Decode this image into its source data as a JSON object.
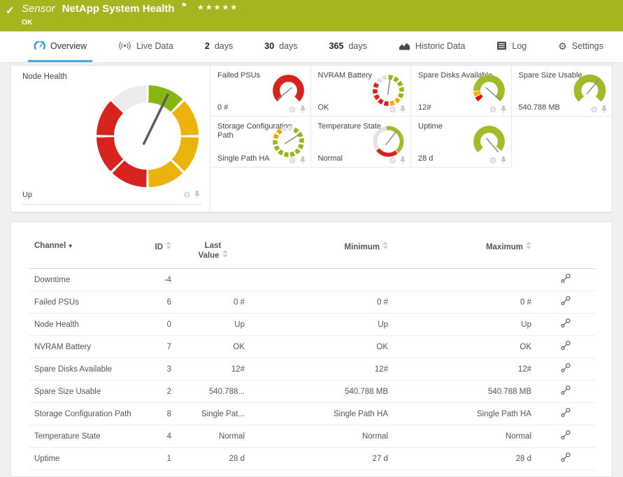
{
  "header": {
    "status_icon": "check-icon",
    "kind": "Sensor",
    "title": "NetApp System Health",
    "flag_icon": "flag-icon",
    "stars": "★★★★★",
    "status": "OK",
    "bg_color": "#a6b420"
  },
  "tabs": [
    {
      "icon": "gauge-icon",
      "label": "Overview",
      "active": true
    },
    {
      "icon": "live-data-icon",
      "label": "Live Data"
    },
    {
      "strong": "2",
      "label": "days"
    },
    {
      "strong": "30",
      "label": "days"
    },
    {
      "strong": "365",
      "label": "days"
    },
    {
      "icon": "historic-data-icon",
      "label": "Historic Data"
    },
    {
      "icon": "log-icon",
      "label": "Log"
    },
    {
      "icon": "settings-icon",
      "label": "Settings"
    }
  ],
  "colors": {
    "header_green": "#a6b420",
    "tab_blue": "#47a7dc",
    "gauge_green": "#87b512",
    "gauge_lime": "#a0ba2a",
    "gauge_yellow": "#ecb30d",
    "gauge_red": "#d7231d",
    "gauge_gray": "#e7e7e7"
  },
  "gauges": {
    "node_health": {
      "title": "Node Health",
      "value": "Up",
      "type": "donut",
      "vb": 150,
      "r": 60.5,
      "w": 25,
      "needle": 26,
      "len": 66,
      "back": 12,
      "nw": 3.4,
      "ncolor": "#5c5c5c",
      "segments": [
        {
          "from": 1.5,
          "to": 43.5,
          "color": "#87b512"
        },
        {
          "from": 46.5,
          "to": 88.5,
          "color": "#ecb30d"
        },
        {
          "from": 91.5,
          "to": 133.5,
          "color": "#ecb30d"
        },
        {
          "from": 136.5,
          "to": 178.5,
          "color": "#ecb30d"
        },
        {
          "from": 181.5,
          "to": 223.5,
          "color": "#d7231d"
        },
        {
          "from": 226.5,
          "to": 268.5,
          "color": "#d7231d"
        },
        {
          "from": 271.5,
          "to": 313.5,
          "color": "#d7231d"
        },
        {
          "from": 316.5,
          "to": 358.5,
          "color": "#ececec"
        }
      ]
    },
    "small": [
      {
        "title": "Failed PSUs",
        "value": "0 #",
        "vb": 64,
        "r": 21,
        "w": 12,
        "needle": -129,
        "len": 24,
        "back": 7,
        "nw": 1.8,
        "ncolor": "#8a8a8a",
        "segments": [
          {
            "from": -135,
            "to": 135,
            "color": "#d7231d"
          }
        ]
      },
      {
        "title": "NVRAM Battery",
        "value": "OK",
        "vb": 64,
        "r": 23,
        "w": 8,
        "needle": 8,
        "len": 20,
        "back": 7,
        "nw": 1.8,
        "ncolor": "#8a8a8a",
        "segments": [
          {
            "from": 0,
            "to": 18,
            "color": "#96b818"
          },
          {
            "from": 25.7,
            "to": 43.7,
            "color": "#96b818"
          },
          {
            "from": 51.4,
            "to": 69.4,
            "color": "#96b818"
          },
          {
            "from": 77.1,
            "to": 95.1,
            "color": "#96b818"
          },
          {
            "from": 102.9,
            "to": 120.9,
            "color": "#96b818"
          },
          {
            "from": 128.6,
            "to": 146.6,
            "color": "#ecb30d"
          },
          {
            "from": 154.3,
            "to": 172.3,
            "color": "#ecb30d"
          },
          {
            "from": 180,
            "to": 198,
            "color": "#d7231d"
          },
          {
            "from": 205.7,
            "to": 223.7,
            "color": "#d7231d"
          },
          {
            "from": 231.4,
            "to": 249.4,
            "color": "#d7231d"
          },
          {
            "from": 257.1,
            "to": 275.1,
            "color": "#d7231d"
          },
          {
            "from": 282.9,
            "to": 300.9,
            "color": "#d7231d"
          },
          {
            "from": 308.6,
            "to": 326.6,
            "color": "#e2e2e2"
          },
          {
            "from": 334.3,
            "to": 352.3,
            "color": "#e2e2e2"
          }
        ]
      },
      {
        "title": "Spare Disks Available",
        "value": "12#",
        "vb": 64,
        "r": 21,
        "w": 12,
        "needle": 131,
        "len": 24,
        "back": 7,
        "nw": 1.8,
        "ncolor": "#8a8a8a",
        "segments": [
          {
            "from": -135,
            "to": -117,
            "color": "#e00b00"
          },
          {
            "from": -114,
            "to": -94,
            "color": "#ecb30d"
          },
          {
            "from": -91,
            "to": 135,
            "color": "#a0ba2a"
          }
        ]
      },
      {
        "title": "Spare Size Usable",
        "value": "540.788 MB",
        "vb": 64,
        "r": 21,
        "w": 13,
        "needle": 40,
        "len": 24,
        "back": 7,
        "nw": 1.8,
        "ncolor": "#8a8a8a",
        "segments": [
          {
            "from": -135,
            "to": 135,
            "color": "#a0ba2a"
          }
        ]
      },
      {
        "title": "Storage Configuration Path",
        "value": "Single Path HA",
        "vb": 64,
        "r": 23,
        "w": 8,
        "needle": 57,
        "len": 20,
        "back": 7,
        "nw": 1.8,
        "ncolor": "#8a8a8a",
        "segments": [
          {
            "from": 0,
            "to": 18,
            "color": "#e2e2e2"
          },
          {
            "from": 25.7,
            "to": 43.7,
            "color": "#96b818"
          },
          {
            "from": 51.4,
            "to": 69.4,
            "color": "#96b818"
          },
          {
            "from": 77.1,
            "to": 95.1,
            "color": "#96b818"
          },
          {
            "from": 102.9,
            "to": 120.9,
            "color": "#96b818"
          },
          {
            "from": 128.6,
            "to": 146.6,
            "color": "#96b818"
          },
          {
            "from": 154.3,
            "to": 172.3,
            "color": "#96b818"
          },
          {
            "from": 180,
            "to": 198,
            "color": "#96b818"
          },
          {
            "from": 205.7,
            "to": 223.7,
            "color": "#96b818"
          },
          {
            "from": 231.4,
            "to": 249.4,
            "color": "#96b818"
          },
          {
            "from": 257.1,
            "to": 275.1,
            "color": "#96b818"
          },
          {
            "from": 282.9,
            "to": 300.9,
            "color": "#e5a90c"
          },
          {
            "from": 308.6,
            "to": 326.6,
            "color": "#e5a90c"
          },
          {
            "from": 334.3,
            "to": 352.3,
            "color": "#e2e2e2"
          }
        ]
      },
      {
        "title": "Temperature State",
        "value": "Normal",
        "vb": 64,
        "r": 23,
        "w": 7,
        "needle": 38,
        "len": 22,
        "back": 7,
        "nw": 1.8,
        "ncolor": "#8a8a8a",
        "segments": [
          {
            "from": -8,
            "to": 140,
            "color": "#a0ba2a"
          },
          {
            "from": 143,
            "to": 233,
            "color": "#d7231d"
          },
          {
            "from": 236,
            "to": 352,
            "color": "#e2e2e2"
          }
        ]
      },
      {
        "title": "Uptime",
        "value": "28 d",
        "vb": 64,
        "r": 21,
        "w": 12,
        "needle": 139,
        "len": 24,
        "back": 7,
        "nw": 1.8,
        "ncolor": "#8a8a8a",
        "segments": [
          {
            "from": -135,
            "to": 127,
            "color": "#a0ba2a"
          }
        ]
      },
      null
    ]
  },
  "channel_table": {
    "columns": [
      {
        "label": "Channel",
        "sorted": true
      },
      {
        "label": "ID"
      },
      {
        "label": "Last Value"
      },
      {
        "label": "Minimum"
      },
      {
        "label": "Maximum"
      },
      {
        "label": ""
      }
    ],
    "rows": [
      {
        "channel": "Downtime",
        "id": "-4",
        "last": "",
        "min": "",
        "max": ""
      },
      {
        "channel": "Failed PSUs",
        "id": "6",
        "last": "0 #",
        "min": "0 #",
        "max": "0 #"
      },
      {
        "channel": "Node Health",
        "id": "0",
        "last": "Up",
        "min": "Up",
        "max": "Up"
      },
      {
        "channel": "NVRAM Battery",
        "id": "7",
        "last": "OK",
        "min": "OK",
        "max": "OK"
      },
      {
        "channel": "Spare Disks Available",
        "id": "3",
        "last": "12#",
        "min": "12#",
        "max": "12#"
      },
      {
        "channel": "Spare Size Usable",
        "id": "2",
        "last": "540.788...",
        "min": "540.788 MB",
        "max": "540.788 MB"
      },
      {
        "channel": "Storage Configuration Path",
        "id": "8",
        "last": "Single Pat...",
        "min": "Single Path HA",
        "max": "Single Path HA"
      },
      {
        "channel": "Temperature State",
        "id": "4",
        "last": "Normal",
        "min": "Normal",
        "max": "Normal"
      },
      {
        "channel": "Uptime",
        "id": "1",
        "last": "28 d",
        "min": "27 d",
        "max": "28 d"
      }
    ]
  }
}
